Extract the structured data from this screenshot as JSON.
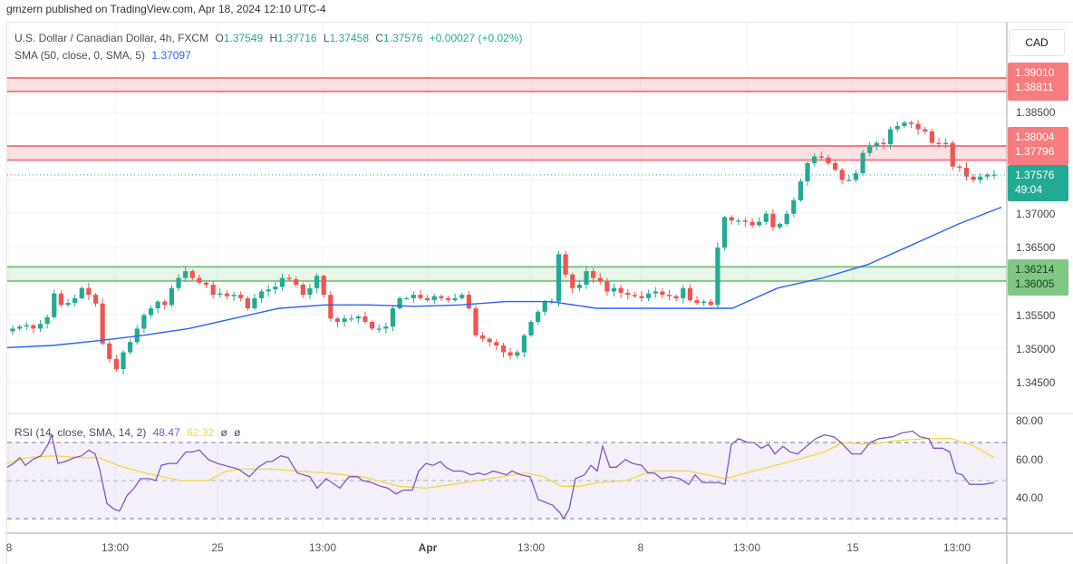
{
  "publish_bar": "gmzern published on TradingView.com, Apr 18, 2024 12:10 UTC-4",
  "legend": {
    "symbol": "U.S. Dollar / Canadian Dollar, 4h, FXCM",
    "open_label": "O",
    "open": "1.37549",
    "high_label": "H",
    "high": "1.37716",
    "low_label": "L",
    "low": "1.37458",
    "close_label": "C",
    "close": "1.37576",
    "change": "+0.00027 (+0.02%)",
    "sma_label": "SMA (50, close, 0, SMA, 5)",
    "sma_value": "1.37097",
    "rsi_label": "RSI (14, close, SMA, 14, 2)",
    "rsi_value": "48.47",
    "rsi_sma_value": "62.32",
    "rsi_extra1": "ø",
    "rsi_extra2": "ø"
  },
  "currency_button": "CAD",
  "price_axis": {
    "ticks": [
      "1.38500",
      "1.37000",
      "1.36500",
      "1.35500",
      "1.35000",
      "1.34500"
    ],
    "tags": [
      {
        "value": "1.39010",
        "style": "red"
      },
      {
        "value": "1.38811",
        "style": "red"
      },
      {
        "value": "1.38004",
        "style": "red"
      },
      {
        "value": "1.37796",
        "style": "red"
      },
      {
        "value": "1.36214",
        "style": "green"
      },
      {
        "value": "1.36005",
        "style": "green"
      }
    ],
    "last_price": "1.37576",
    "countdown": "49:04"
  },
  "rsi_axis": {
    "ticks": [
      "80.00",
      "60.00",
      "40.00"
    ]
  },
  "time_axis": {
    "labels": [
      "8",
      "13:00",
      "25",
      "13:00",
      "Apr",
      "13:00",
      "8",
      "13:00",
      "15",
      "13:00"
    ]
  },
  "colors": {
    "up": "#22ab94",
    "down": "#f23645",
    "sma": "#2962ff",
    "rsi": "#7e57c2",
    "rsi_sma": "#f4d83a",
    "resistance_zone": "#f77c80",
    "support_zone": "#81c784"
  },
  "chart_data": {
    "type": "candlestick",
    "title": "U.S. Dollar / Canadian Dollar, 4h, FXCM",
    "xlabel": "",
    "ylabel": "CAD",
    "ylim": [
      1.3415,
      1.3925
    ],
    "x_tick_labels": [
      "8",
      "13:00",
      "25",
      "13:00",
      "Apr",
      "13:00",
      "8",
      "13:00",
      "15",
      "13:00"
    ],
    "y_tick_labels": [
      "1.34500",
      "1.35000",
      "1.35500",
      "1.36500",
      "1.37000",
      "1.38500"
    ],
    "ohlc_last": {
      "open": 1.37549,
      "high": 1.37716,
      "low": 1.37458,
      "close": 1.37576,
      "change": 0.00027,
      "change_pct": 0.02
    },
    "zones": [
      {
        "name": "resistance-upper",
        "top": 1.3901,
        "bottom": 1.38811
      },
      {
        "name": "resistance-lower",
        "top": 1.38004,
        "bottom": 1.37796
      },
      {
        "name": "support",
        "top": 1.36214,
        "bottom": 1.36005
      }
    ],
    "closes_approx": [
      1.353,
      1.3533,
      1.3535,
      1.353,
      1.3537,
      1.3547,
      1.3582,
      1.3565,
      1.3568,
      1.3575,
      1.359,
      1.358,
      1.3567,
      1.3508,
      1.3485,
      1.347,
      1.3495,
      1.351,
      1.353,
      1.355,
      1.356,
      1.357,
      1.3565,
      1.359,
      1.3605,
      1.3615,
      1.3605,
      1.3598,
      1.3595,
      1.358,
      1.3582,
      1.3578,
      1.358,
      1.3575,
      1.356,
      1.3575,
      1.3585,
      1.3588,
      1.3592,
      1.3605,
      1.3603,
      1.3595,
      1.358,
      1.359,
      1.3608,
      1.358,
      1.3545,
      1.354,
      1.3545,
      1.3545,
      1.3548,
      1.354,
      1.353,
      1.353,
      1.3533,
      1.356,
      1.3575,
      1.3575,
      1.358,
      1.3575,
      1.3572,
      1.3578,
      1.3575,
      1.3572,
      1.3575,
      1.358,
      1.356,
      1.352,
      1.3515,
      1.351,
      1.3505,
      1.3495,
      1.349,
      1.3495,
      1.352,
      1.354,
      1.3555,
      1.357,
      1.357,
      1.364,
      1.361,
      1.359,
      1.3595,
      1.3615,
      1.3605,
      1.36,
      1.3585,
      1.359,
      1.3583,
      1.358,
      1.3578,
      1.3575,
      1.3582,
      1.3585,
      1.358,
      1.3578,
      1.3575,
      1.359,
      1.3572,
      1.3568,
      1.357,
      1.3565,
      1.365,
      1.3695,
      1.369,
      1.369,
      1.3688,
      1.3683,
      1.3688,
      1.37,
      1.368,
      1.3685,
      1.37,
      1.372,
      1.3748,
      1.3775,
      1.3785,
      1.3783,
      1.3775,
      1.3765,
      1.375,
      1.375,
      1.376,
      1.379,
      1.38,
      1.3805,
      1.3803,
      1.3825,
      1.383,
      1.3835,
      1.3833,
      1.3825,
      1.3822,
      1.3805,
      1.3803,
      1.3805,
      1.377,
      1.3768,
      1.3755,
      1.375,
      1.3755,
      1.3758,
      1.3758
    ],
    "sma50_series": {
      "name": "SMA (50, close, 0, SMA, 5)",
      "last": 1.37097,
      "points_approx": [
        [
          0,
          1.3502
        ],
        [
          50,
          1.3505
        ],
        [
          100,
          1.3512
        ],
        [
          150,
          1.352
        ],
        [
          200,
          1.353
        ],
        [
          250,
          1.3545
        ],
        [
          300,
          1.356
        ],
        [
          350,
          1.3565
        ],
        [
          400,
          1.3565
        ],
        [
          450,
          1.3563
        ],
        [
          500,
          1.3565
        ],
        [
          550,
          1.357
        ],
        [
          600,
          1.357
        ],
        [
          650,
          1.356
        ],
        [
          700,
          1.356
        ],
        [
          750,
          1.356
        ],
        [
          800,
          1.356
        ],
        [
          850,
          1.359
        ],
        [
          900,
          1.3605
        ],
        [
          950,
          1.3625
        ],
        [
          1000,
          1.3655
        ],
        [
          1050,
          1.3685
        ],
        [
          1097,
          1.37097
        ]
      ]
    },
    "rsi_panel": {
      "type": "line",
      "ylim": [
        20,
        85
      ],
      "y_tick_labels": [
        "80.00",
        "60.00",
        "40.00"
      ],
      "bands": [
        30,
        50,
        70
      ],
      "series": [
        {
          "name": "RSI",
          "last": 48.47
        },
        {
          "name": "RSI SMA",
          "last": 62.32
        }
      ]
    }
  }
}
